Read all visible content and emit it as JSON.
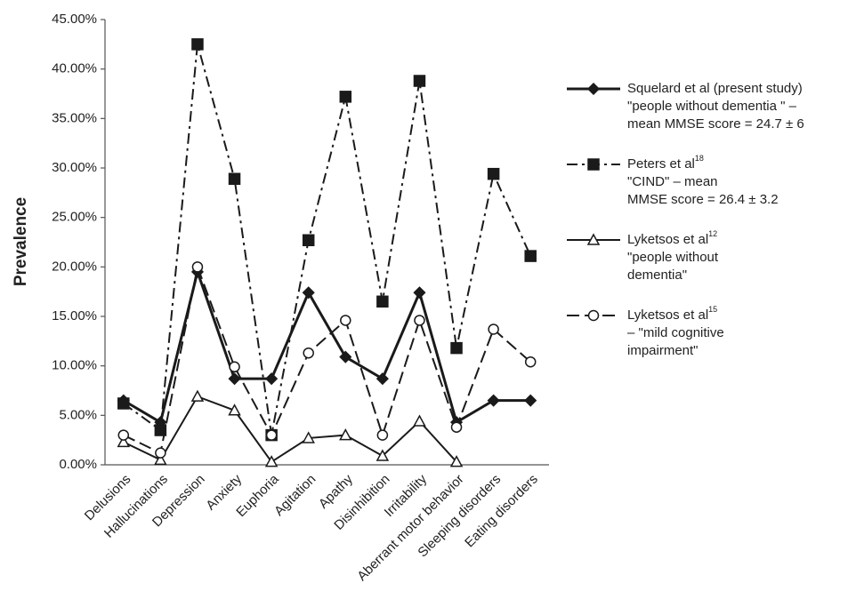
{
  "chart_data": {
    "type": "line",
    "y_label": "Prevalence",
    "categories": [
      "Delusions",
      "Hallucinations",
      "Depression",
      "Anxiety",
      "Euphoria",
      "Agitation",
      "Apathy",
      "Disinhibition",
      "Irritability",
      "Aberrant motor behavior",
      "Sleeping disorders",
      "Eating disorders"
    ],
    "ylim": [
      0,
      45
    ],
    "yticks": [
      {
        "value": 0,
        "label": "0.00%"
      },
      {
        "value": 5,
        "label": "5.00%"
      },
      {
        "value": 10,
        "label": "10.00%"
      },
      {
        "value": 15,
        "label": "15.00%"
      },
      {
        "value": 20,
        "label": "20.00%"
      },
      {
        "value": 25,
        "label": "25.00%"
      },
      {
        "value": 30,
        "label": "30.00%"
      },
      {
        "value": 35,
        "label": "35.00%"
      },
      {
        "value": 40,
        "label": "40.00%"
      },
      {
        "value": 45,
        "label": "45.00%"
      }
    ],
    "grid": false,
    "legend": "right",
    "series": [
      {
        "name": "Squelard et al (present study)",
        "note_lines": [
          "\"people without dementia \" –",
          "mean MMSE score = 24.7 ± 6"
        ],
        "color": "#1a1a1a",
        "width": 3,
        "dash": "solid",
        "marker": "diamond",
        "values": [
          6.5,
          4.3,
          19.5,
          8.7,
          8.7,
          17.4,
          10.9,
          8.7,
          17.4,
          4.3,
          6.5,
          6.5
        ]
      },
      {
        "name": "Peters et al",
        "sup": "18",
        "note_lines": [
          "\"CIND\" – mean",
          "MMSE score = 26.4 ± 3.2"
        ],
        "color": "#1a1a1a",
        "width": 2,
        "dash": "dashdot",
        "marker": "square",
        "values": [
          6.2,
          3.5,
          42.5,
          28.9,
          3.0,
          22.7,
          37.2,
          16.5,
          38.8,
          11.8,
          29.4,
          21.1
        ]
      },
      {
        "name": "Lyketsos et al",
        "sup": "12",
        "note_lines": [
          "\"people without",
          "dementia\""
        ],
        "color": "#1a1a1a",
        "width": 2,
        "dash": "solid",
        "marker": "triangle",
        "values": [
          2.3,
          0.5,
          6.9,
          5.5,
          0.3,
          2.7,
          3.0,
          0.9,
          4.4,
          0.3,
          null,
          null
        ]
      },
      {
        "name": "Lyketsos et al",
        "sup": "15",
        "note_lines": [
          "– \"mild cognitive",
          "impairment\""
        ],
        "color": "#1a1a1a",
        "width": 2,
        "dash": "longdash",
        "marker": "circle",
        "values": [
          3.0,
          1.2,
          20.0,
          9.9,
          3.0,
          11.3,
          14.6,
          3.0,
          14.6,
          3.8,
          13.7,
          10.4
        ]
      }
    ]
  }
}
